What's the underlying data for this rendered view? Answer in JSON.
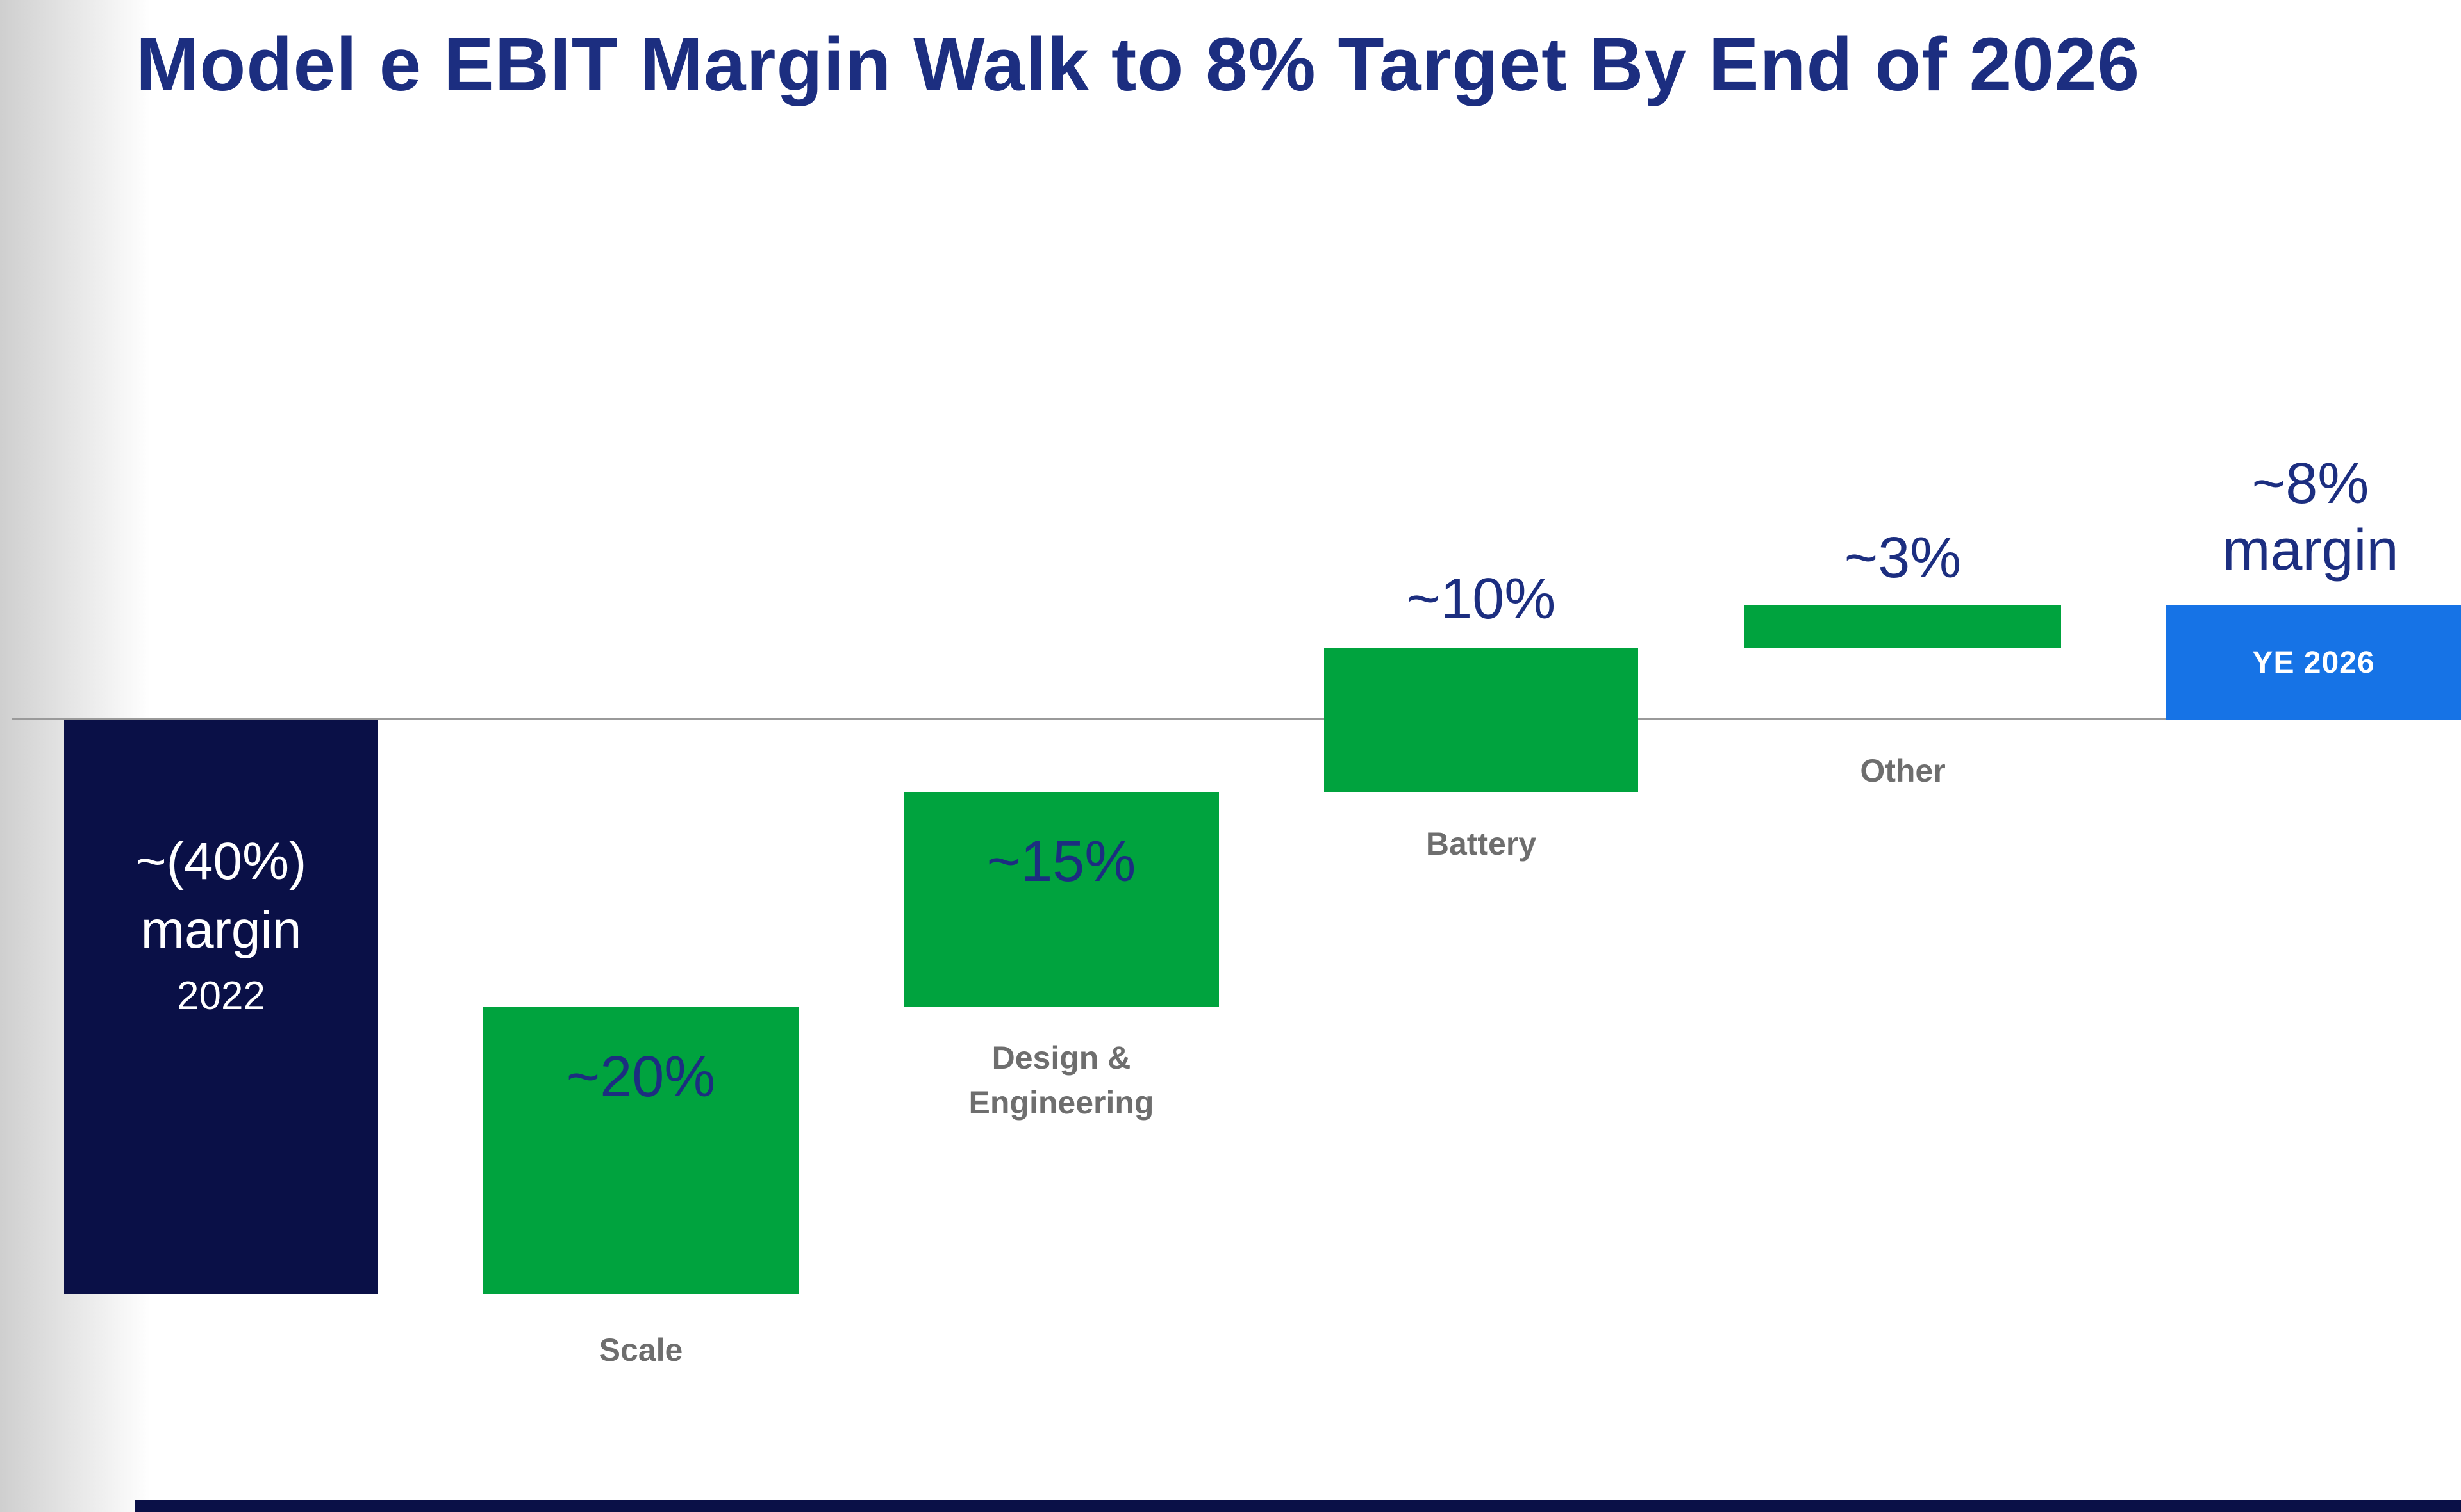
{
  "page": {
    "title": "Model e EBIT Margin Walk to 8% Target By End of 2026"
  },
  "colors": {
    "title-navy": "#1c2e80",
    "value-navy": "#1c2e80",
    "bar-navy": "#0a1047",
    "bar-green": "#00a33e",
    "bar-blue": "#1673e6",
    "category-gray": "#6e6e6e",
    "baseline-gray": "#9a9a9a",
    "bar-text-white": "#ffffff"
  },
  "chart_data": {
    "type": "waterfall",
    "title": "Model e EBIT Margin Walk to 8% Target By End of 2026",
    "unit": "EBIT margin, percent",
    "baseline": 0,
    "axis": {
      "zero_line": true,
      "ylim_percent": [
        -42,
        12
      ],
      "grid": false
    },
    "categories": [
      "2022",
      "Scale",
      "Design & Engineering",
      "Battery",
      "Other",
      "YE 2026"
    ],
    "steps": [
      {
        "category": "2022",
        "bar_type": "total",
        "start_percent": 0,
        "end_percent": -40,
        "value_percent": -40,
        "label_lines": [
          "~(40%)",
          "margin"
        ],
        "year": "2022",
        "color": "navy",
        "label_position": "inside"
      },
      {
        "category": "Scale",
        "bar_type": "increase",
        "start_percent": -40,
        "end_percent": -20,
        "value_percent": 20,
        "value_label": "~20%",
        "color": "green",
        "label_position": "inside"
      },
      {
        "category": "Design & Engineering",
        "category_lines": [
          "Design &",
          "Engineering"
        ],
        "bar_type": "increase",
        "start_percent": -20,
        "end_percent": -5,
        "value_percent": 15,
        "value_label": "~15%",
        "color": "green",
        "label_position": "inside"
      },
      {
        "category": "Battery",
        "bar_type": "increase",
        "start_percent": -5,
        "end_percent": 5,
        "value_percent": 10,
        "value_label": "~10%",
        "color": "green",
        "label_position": "above"
      },
      {
        "category": "Other",
        "bar_type": "increase",
        "start_percent": 5,
        "end_percent": 8,
        "value_percent": 3,
        "value_label": "~3%",
        "color": "green",
        "label_position": "above"
      },
      {
        "category": "YE 2026",
        "bar_type": "total",
        "start_percent": 0,
        "end_percent": 8,
        "value_percent": 8,
        "value_label_lines": [
          "~8%",
          "margin"
        ],
        "inner_label": "YE 2026",
        "color": "blue",
        "label_position": "above"
      }
    ]
  }
}
